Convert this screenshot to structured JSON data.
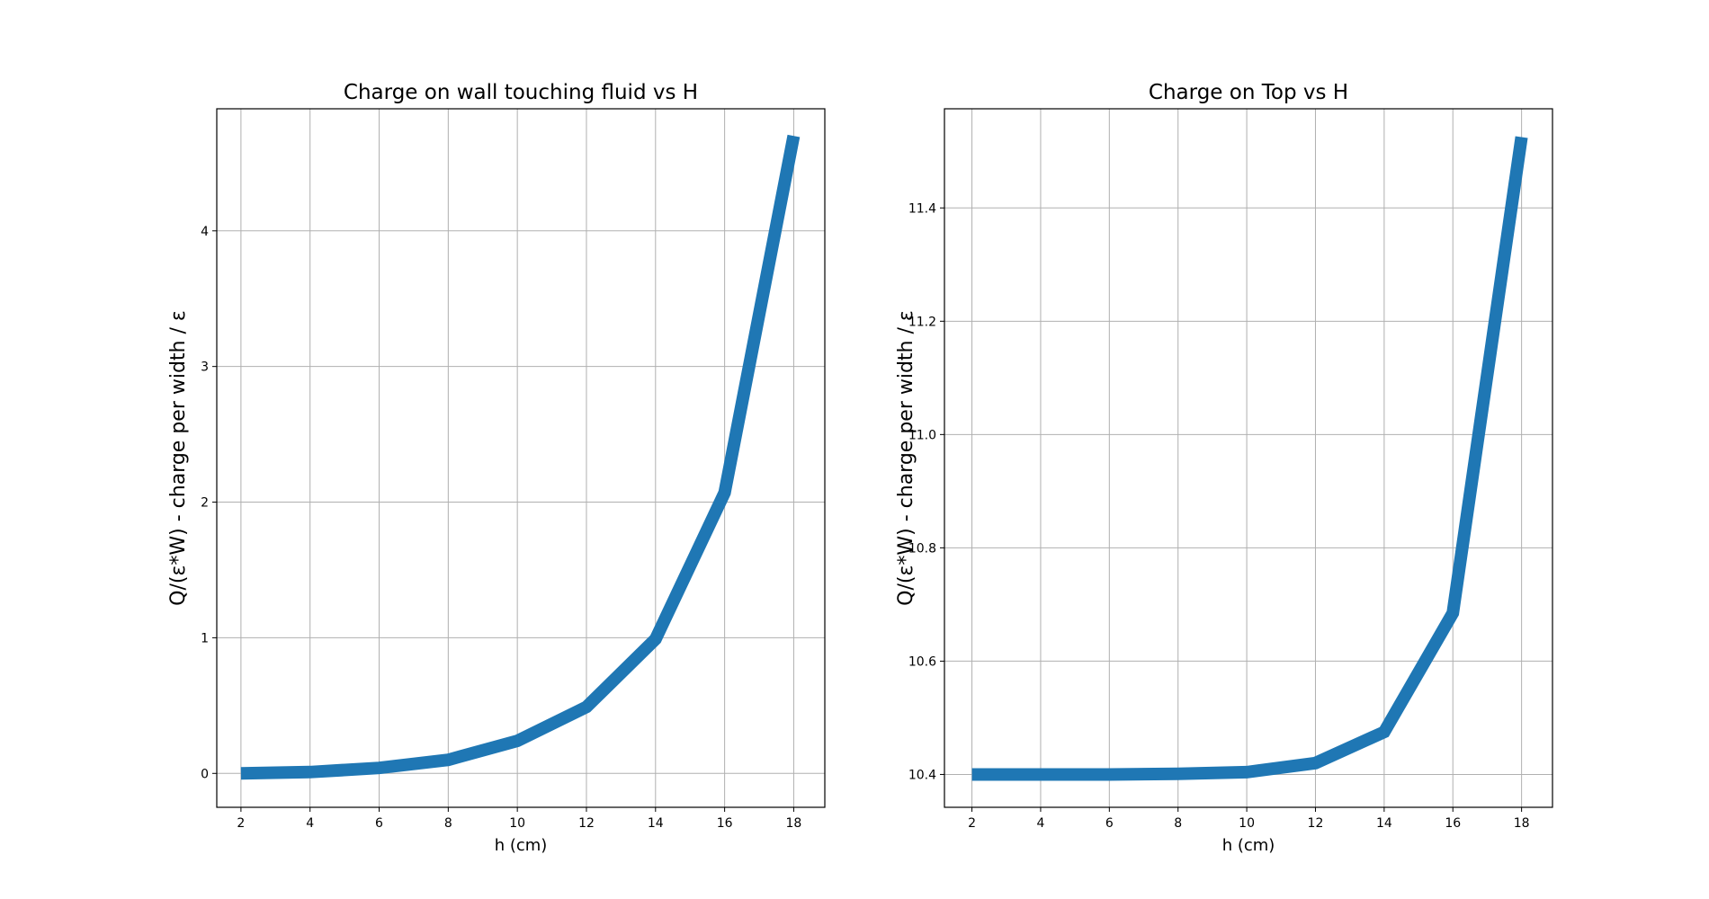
{
  "chart_data": [
    {
      "type": "line",
      "title": "Charge on wall touching fluid vs H",
      "xlabel": "h (cm)",
      "ylabel": "Q/(ε*W) - charge per width / ε",
      "x": [
        2,
        4,
        6,
        8,
        10,
        12,
        14,
        16,
        18
      ],
      "series": [
        {
          "values": [
            0.0,
            0.01,
            0.04,
            0.1,
            0.24,
            0.49,
            0.99,
            2.07,
            4.7
          ]
        }
      ],
      "xlim": [
        1.3,
        18.9
      ],
      "ylim": [
        -0.25,
        4.9
      ],
      "xticks": [
        2,
        4,
        6,
        8,
        10,
        12,
        14,
        16,
        18
      ],
      "yticks": [
        0,
        1,
        2,
        3,
        4
      ],
      "xtick_labels": [
        "2",
        "4",
        "6",
        "8",
        "10",
        "12",
        "14",
        "16",
        "18"
      ],
      "ytick_labels": [
        "0",
        "1",
        "2",
        "3",
        "4"
      ],
      "grid": true,
      "color": "#1f77b4"
    },
    {
      "type": "line",
      "title": "Charge on Top vs H",
      "xlabel": "h (cm)",
      "ylabel": "Q/(ε*W) - charge per width / ε",
      "x": [
        2,
        4,
        6,
        8,
        10,
        12,
        14,
        16,
        18
      ],
      "series": [
        {
          "values": [
            10.4,
            10.4,
            10.4,
            10.401,
            10.404,
            10.42,
            10.475,
            10.685,
            11.525
          ]
        }
      ],
      "xlim": [
        1.2,
        18.9
      ],
      "ylim": [
        10.342,
        11.575
      ],
      "xticks": [
        2,
        4,
        6,
        8,
        10,
        12,
        14,
        16,
        18
      ],
      "yticks": [
        10.4,
        10.6,
        10.8,
        11.0,
        11.2,
        11.4
      ],
      "xtick_labels": [
        "2",
        "4",
        "6",
        "8",
        "10",
        "12",
        "14",
        "16",
        "18"
      ],
      "ytick_labels": [
        "10.4",
        "10.6",
        "10.8",
        "11.0",
        "11.2",
        "11.4"
      ],
      "grid": true,
      "color": "#1f77b4"
    }
  ]
}
